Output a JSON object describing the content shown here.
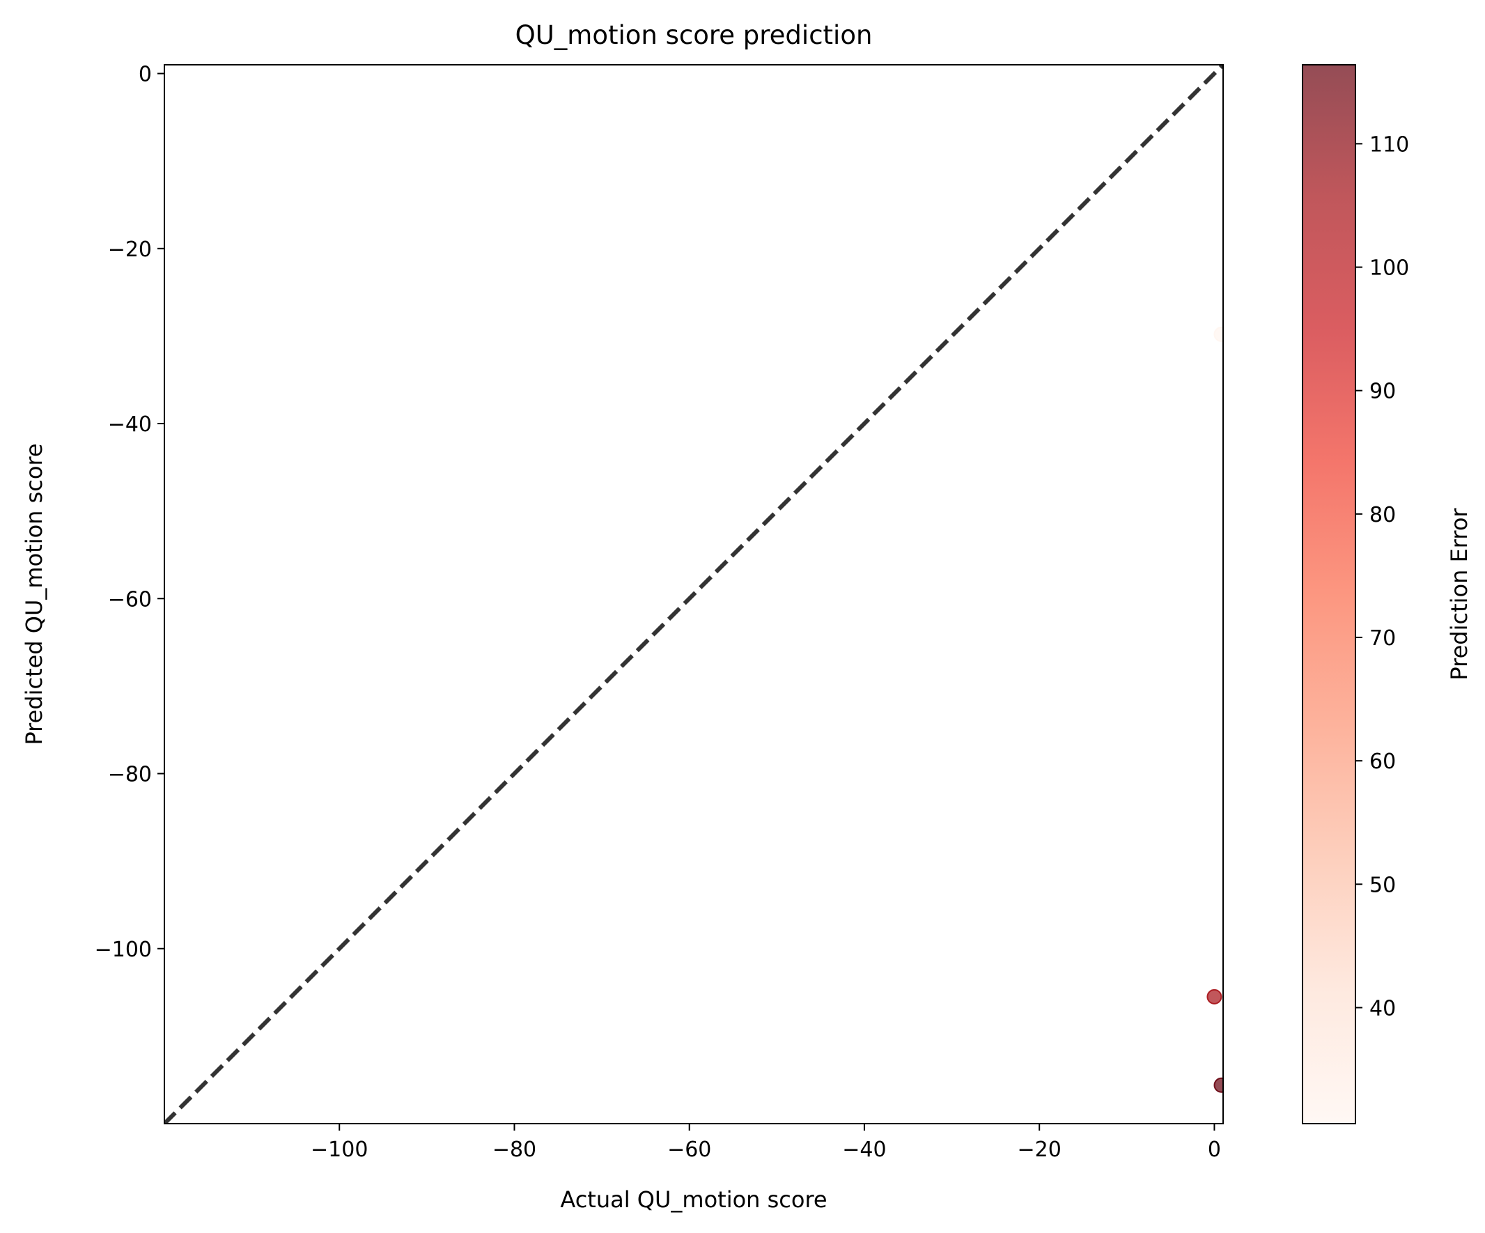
{
  "chart_data": {
    "type": "scatter",
    "title": "QU_motion score prediction",
    "xlabel": "Actual QU_motion score",
    "ylabel": "Predicted QU_motion score",
    "xlim": [
      -120,
      1
    ],
    "ylim": [
      -120,
      1
    ],
    "xticks": [
      -100,
      -80,
      -60,
      -40,
      -20,
      0
    ],
    "yticks": [
      0,
      -20,
      -40,
      -60,
      -80,
      -100
    ],
    "xtick_labels": [
      "−100",
      "−80",
      "−60",
      "−40",
      "−20",
      "0"
    ],
    "ytick_labels": [
      "0",
      "−20",
      "−40",
      "−60",
      "−80",
      "−100"
    ],
    "grid": false,
    "diagonal_reference_line": {
      "style": "dashed",
      "color": "#333333",
      "from": [
        -120,
        -120
      ],
      "to": [
        1,
        1
      ]
    },
    "points": [
      {
        "x": 0.8,
        "y": -29.8,
        "error": 30.6
      },
      {
        "x": 0.0,
        "y": -105.5,
        "error": 105.5
      },
      {
        "x": 0.8,
        "y": -115.6,
        "error": 116.4
      }
    ],
    "colorbar": {
      "label": "Prediction Error",
      "min": 30.6,
      "max": 116.4,
      "ticks": [
        40,
        50,
        60,
        70,
        80,
        90,
        100,
        110
      ],
      "tick_labels": [
        "40",
        "50",
        "60",
        "70",
        "80",
        "90",
        "100",
        "110"
      ],
      "colormap": "Reds",
      "stops": [
        "#fff5f0",
        "#fee0d2",
        "#fcbba1",
        "#fc9272",
        "#fb6a4a",
        "#ef3b2c",
        "#cb181d",
        "#a50f15",
        "#67000d"
      ],
      "alpha": 0.7
    }
  }
}
